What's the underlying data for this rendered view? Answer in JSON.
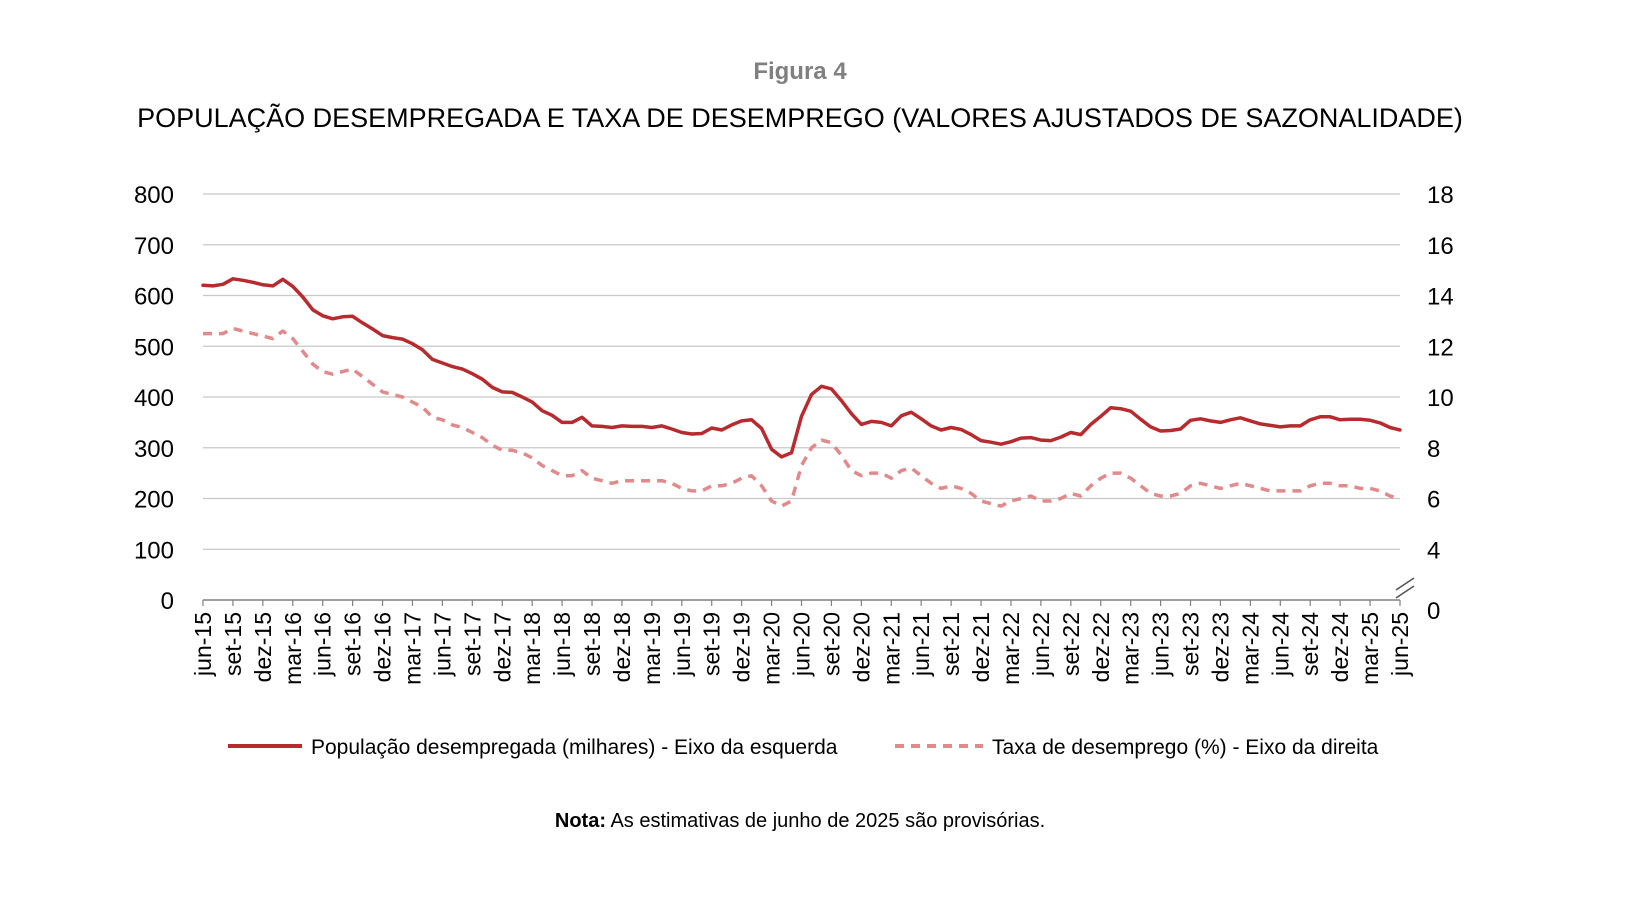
{
  "figure_label": "Figura 4",
  "title": "POPULAÇÃO DESEMPREGADA E TAXA DE DESEMPREGO (VALORES AJUSTADOS DE SAZONALIDADE)",
  "note_label": "Nota:",
  "note_text": " As estimativas de junho de 2025 são provisórias.",
  "colors": {
    "population": "#b72b2e",
    "rate": "#e08a8c",
    "grid": "#c8c8c8",
    "axis": "#808080"
  },
  "chart_data": {
    "type": "line",
    "x": [
      "jun-15",
      "jul-15",
      "ago-15",
      "set-15",
      "out-15",
      "nov-15",
      "dez-15",
      "jan-16",
      "fev-16",
      "mar-16",
      "abr-16",
      "mai-16",
      "jun-16",
      "jul-16",
      "ago-16",
      "set-16",
      "out-16",
      "nov-16",
      "dez-16",
      "jan-17",
      "fev-17",
      "mar-17",
      "abr-17",
      "mai-17",
      "jun-17",
      "jul-17",
      "ago-17",
      "set-17",
      "out-17",
      "nov-17",
      "dez-17",
      "jan-18",
      "fev-18",
      "mar-18",
      "abr-18",
      "mai-18",
      "jun-18",
      "jul-18",
      "ago-18",
      "set-18",
      "out-18",
      "nov-18",
      "dez-18",
      "jan-19",
      "fev-19",
      "mar-19",
      "abr-19",
      "mai-19",
      "jun-19",
      "jul-19",
      "ago-19",
      "set-19",
      "out-19",
      "nov-19",
      "dez-19",
      "jan-20",
      "fev-20",
      "mar-20",
      "abr-20",
      "mai-20",
      "jun-20",
      "jul-20",
      "ago-20",
      "set-20",
      "out-20",
      "nov-20",
      "dez-20",
      "jan-21",
      "fev-21",
      "mar-21",
      "abr-21",
      "mai-21",
      "jun-21",
      "jul-21",
      "ago-21",
      "set-21",
      "out-21",
      "nov-21",
      "dez-21",
      "jan-22",
      "fev-22",
      "mar-22",
      "abr-22",
      "mai-22",
      "jun-22",
      "jul-22",
      "ago-22",
      "set-22",
      "out-22",
      "nov-22",
      "dez-22",
      "jan-23",
      "fev-23",
      "mar-23",
      "abr-23",
      "mai-23",
      "jun-23",
      "jul-23",
      "ago-23",
      "set-23",
      "out-23",
      "nov-23",
      "dez-23",
      "jan-24",
      "fev-24",
      "mar-24",
      "abr-24",
      "mai-24",
      "jun-24",
      "jul-24",
      "ago-24",
      "set-24",
      "out-24",
      "nov-24",
      "dez-24",
      "jan-25",
      "fev-25",
      "mar-25",
      "abr-25",
      "mai-25",
      "jun-25"
    ],
    "x_tick_labels": [
      "jun-15",
      "set-15",
      "dez-15",
      "mar-16",
      "jun-16",
      "set-16",
      "dez-16",
      "mar-17",
      "jun-17",
      "set-17",
      "dez-17",
      "mar-18",
      "jun-18",
      "set-18",
      "dez-18",
      "mar-19",
      "jun-19",
      "set-19",
      "dez-19",
      "mar-20",
      "jun-20",
      "set-20",
      "dez-20",
      "mar-21",
      "jun-21",
      "set-21",
      "dez-21",
      "mar-22",
      "jun-22",
      "set-22",
      "dez-22",
      "mar-23",
      "jun-23",
      "set-23",
      "dez-23",
      "mar-24",
      "jun-24",
      "set-24",
      "dez-24",
      "mar-25",
      "jun-25"
    ],
    "y_left": {
      "min": 0,
      "max": 800,
      "ticks": [
        0,
        100,
        200,
        300,
        400,
        500,
        600,
        700,
        800
      ]
    },
    "y_right": {
      "ticks": [
        0,
        4,
        6,
        8,
        10,
        12,
        14,
        16,
        18
      ],
      "note": "broken axis between 0 and 4"
    },
    "grid": true,
    "legend_position": "bottom",
    "series": [
      {
        "name": "População desempregada (milhares) - Eixo da esquerda",
        "axis": "left",
        "style": "solid",
        "values": [
          620,
          619,
          622,
          633,
          630,
          626,
          621,
          619,
          632,
          618,
          597,
          572,
          560,
          554,
          558,
          559,
          546,
          534,
          521,
          517,
          514,
          505,
          493,
          474,
          467,
          460,
          455,
          446,
          435,
          419,
          410,
          409,
          400,
          390,
          373,
          364,
          350,
          350,
          360,
          343,
          342,
          340,
          343,
          342,
          342,
          340,
          343,
          337,
          330,
          327,
          328,
          339,
          335,
          345,
          353,
          355,
          338,
          297,
          282,
          290,
          362,
          405,
          421,
          416,
          393,
          367,
          346,
          352,
          350,
          343,
          363,
          370,
          357,
          343,
          335,
          340,
          336,
          326,
          314,
          311,
          307,
          312,
          319,
          320,
          315,
          314,
          321,
          330,
          326,
          346,
          362,
          379,
          377,
          372,
          356,
          341,
          333,
          334,
          337,
          354,
          357,
          353,
          350,
          355,
          359,
          353,
          347,
          344,
          341,
          343,
          343,
          355,
          361,
          361,
          355,
          356,
          356,
          354,
          349,
          340,
          335
        ]
      },
      {
        "name": "Taxa de desemprego (%) - Eixo da direita",
        "axis": "right",
        "style": "dashed",
        "values": [
          12.5,
          12.5,
          12.5,
          12.7,
          12.6,
          12.5,
          12.4,
          12.3,
          12.6,
          12.3,
          11.8,
          11.3,
          11.0,
          10.9,
          11.0,
          11.1,
          10.8,
          10.5,
          10.2,
          10.1,
          10.0,
          9.8,
          9.6,
          9.2,
          9.1,
          8.9,
          8.8,
          8.6,
          8.4,
          8.1,
          7.9,
          7.9,
          7.8,
          7.6,
          7.3,
          7.1,
          6.9,
          6.9,
          7.1,
          6.8,
          6.7,
          6.6,
          6.7,
          6.7,
          6.7,
          6.7,
          6.7,
          6.6,
          6.4,
          6.3,
          6.3,
          6.5,
          6.5,
          6.6,
          6.8,
          6.9,
          6.5,
          5.9,
          5.7,
          5.9,
          7.3,
          8.0,
          8.3,
          8.2,
          7.7,
          7.1,
          6.9,
          7.0,
          7.0,
          6.8,
          7.1,
          7.2,
          6.9,
          6.6,
          6.4,
          6.5,
          6.4,
          6.2,
          5.9,
          5.8,
          5.7,
          5.9,
          6.0,
          6.1,
          5.9,
          5.9,
          6.0,
          6.2,
          6.1,
          6.5,
          6.8,
          7.0,
          7.0,
          6.8,
          6.5,
          6.2,
          6.1,
          6.1,
          6.2,
          6.5,
          6.6,
          6.5,
          6.4,
          6.5,
          6.6,
          6.5,
          6.4,
          6.3,
          6.3,
          6.3,
          6.3,
          6.5,
          6.6,
          6.6,
          6.5,
          6.5,
          6.4,
          6.4,
          6.3,
          6.1,
          6.0
        ]
      }
    ]
  }
}
